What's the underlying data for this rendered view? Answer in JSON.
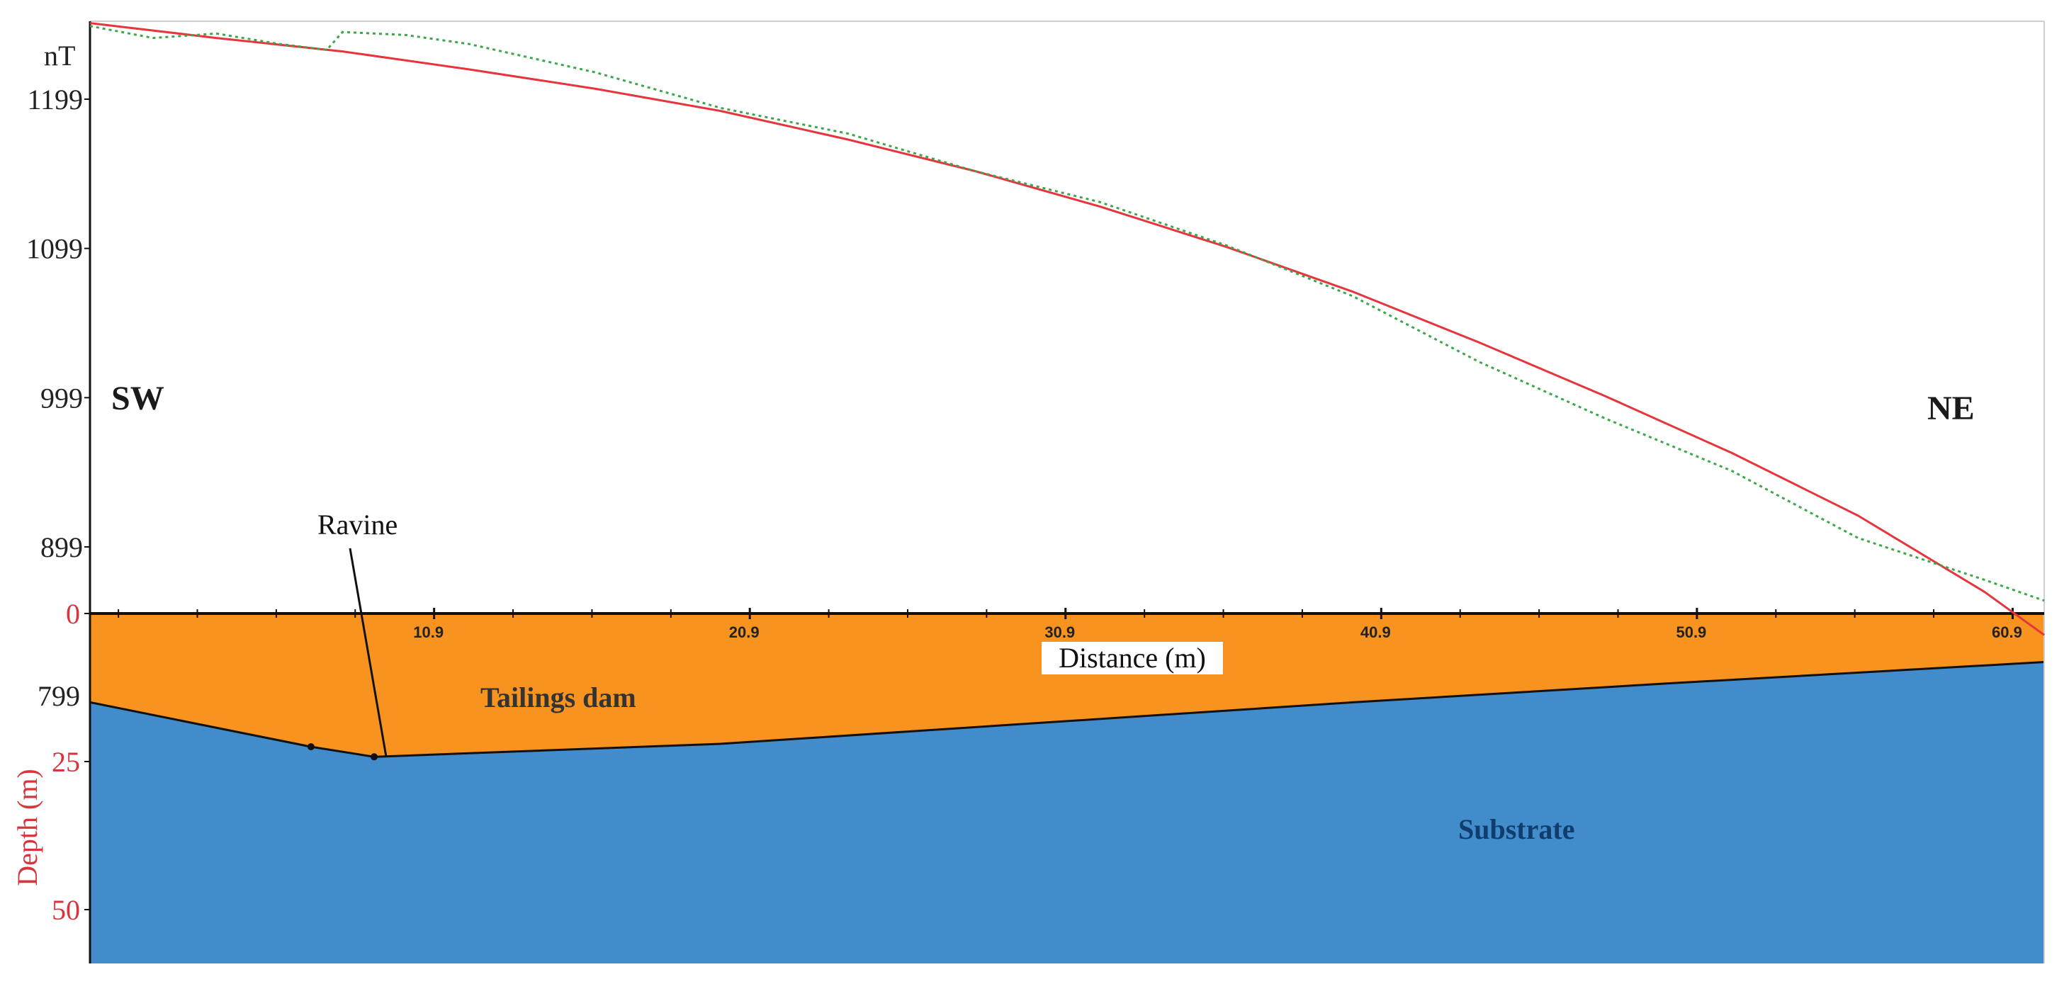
{
  "chart_data": {
    "type": "line",
    "top_panel": {
      "unit_label": "nT",
      "y_ticks": [
        899,
        999,
        1099,
        1199
      ],
      "ylim": [
        800,
        1250
      ],
      "series": [
        {
          "color": "#e8343c",
          "style": "solid",
          "x": [
            0,
            4,
            8,
            12,
            16,
            20,
            24,
            28,
            32,
            36,
            40,
            44,
            48,
            52,
            56,
            60,
            61.9
          ],
          "y": [
            1250,
            1240,
            1231,
            1219,
            1206,
            1191,
            1172,
            1151,
            1127,
            1100,
            1070,
            1036,
            1000,
            962,
            920,
            869,
            840
          ]
        },
        {
          "color": "#3aa84a",
          "style": "dotted",
          "x": [
            0,
            2,
            4,
            6,
            7.5,
            8,
            10,
            12,
            16,
            20,
            24,
            28,
            32,
            36,
            40,
            44,
            48,
            52,
            56,
            60,
            61.9
          ],
          "y": [
            1248,
            1240,
            1243,
            1236,
            1232,
            1244,
            1242,
            1236,
            1217,
            1193,
            1176,
            1151,
            1130,
            1101,
            1067,
            1023,
            985,
            950,
            905,
            877,
            863
          ]
        }
      ]
    },
    "bottom_panel": {
      "xlabel": "Distance (m)",
      "ylabel": "Depth (m)",
      "x_ticks": [
        10.9,
        20.9,
        30.9,
        40.9,
        50.9,
        60.9
      ],
      "depth_ticks": [
        0,
        25,
        50
      ],
      "depth_tick_labels": [
        "0",
        "25",
        "50"
      ],
      "extra_tick_label": "799",
      "xlim": [
        0,
        61.9
      ],
      "depth_range": [
        0,
        58
      ],
      "interface": {
        "x": [
          0,
          7,
          9,
          20,
          30,
          40,
          50,
          61.9
        ],
        "depth": [
          15,
          22.5,
          24.2,
          22,
          18.5,
          15,
          11.8,
          8.2
        ]
      },
      "layers": [
        {
          "label": "Tailings dam",
          "color": "#f7931e",
          "text_color": "#333333"
        },
        {
          "label": "Substrate",
          "color": "#438ccb",
          "text_color": "#0f3e6e"
        }
      ],
      "annotations": [
        "Ravine"
      ]
    },
    "direction_labels": [
      "SW",
      "NE"
    ]
  }
}
